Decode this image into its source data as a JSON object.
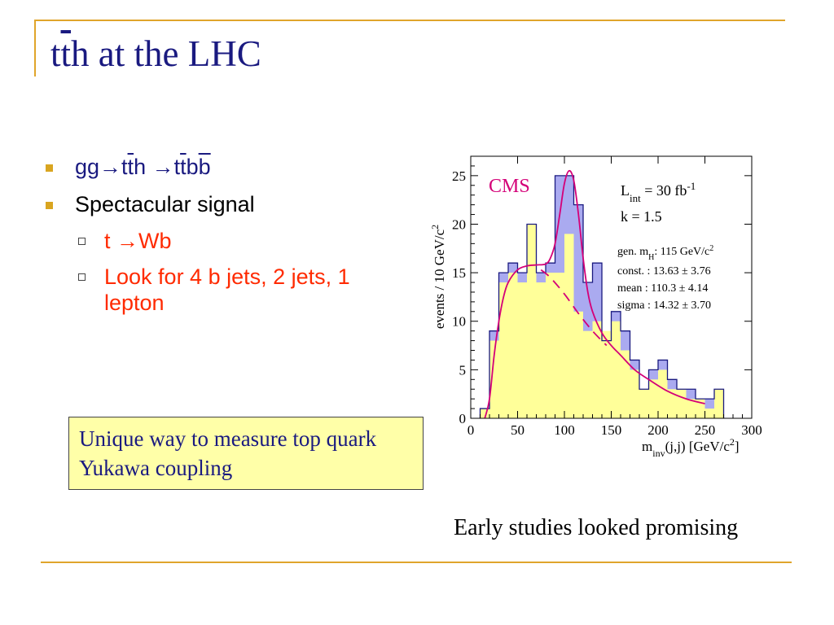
{
  "slide": {
    "title_part1": "t",
    "title_part2": "t",
    "title_part3": "h at the LHC",
    "bullet1_part1": "gg→t",
    "bullet1_part2": "t",
    "bullet1_part3": "h →t",
    "bullet1_part4": "t",
    "bullet1_part5": "b",
    "bullet1_part6": "b",
    "bullet2": "Spectacular signal",
    "sub1": "t →Wb",
    "sub2": "Look for 4 b jets, 2 jets, 1 lepton",
    "callout": "Unique way to measure top quark Yukawa coupling",
    "caption": "Early studies looked promising"
  },
  "colors": {
    "accent": "#e0a52b",
    "title": "#1a1a80",
    "sub_bullet": "#ff2a00",
    "callout_bg": "#ffffa8",
    "hist_signal": "#aaaaf0",
    "hist_background": "#ffff99",
    "fit": "#d40078"
  },
  "chart_data": {
    "type": "bar",
    "experiment_label": "CMS",
    "lumi_label": "L",
    "lumi_sub": "int",
    "lumi_value": " = 30 fb",
    "lumi_sup": "-1",
    "k_label": "k = 1.5",
    "fit_gen_label": "gen. m",
    "fit_gen_sub": "H",
    "fit_gen_value": ": 115 GeV/c",
    "fit_gen_sup": "2",
    "fit_const": "const. :  13.63 ± 3.76",
    "fit_mean": "mean  :  110.3 ± 4.14",
    "fit_sigma": "sigma :  14.32 ± 3.70",
    "xlabel_main": "m",
    "xlabel_sub": "inv",
    "xlabel_rest": "(j,j) [GeV/c",
    "xlabel_sup": "2",
    "xlabel_end": "]",
    "ylabel_main": "events / 10 GeV/c",
    "ylabel_sup": "2",
    "xlim": [
      0,
      300
    ],
    "ylim": [
      0,
      27
    ],
    "x_ticks": [
      0,
      50,
      100,
      150,
      200,
      250,
      300
    ],
    "y_ticks": [
      0,
      5,
      10,
      15,
      20,
      25
    ],
    "bin_width": 10,
    "bin_edges_start": 10,
    "total": [
      1,
      9,
      15,
      16,
      15,
      20,
      15,
      16,
      25,
      25,
      22,
      14,
      16,
      8,
      11,
      9,
      6,
      3,
      5,
      6,
      4,
      3,
      3,
      2,
      2,
      3
    ],
    "background": [
      1,
      8,
      14,
      15,
      14,
      20,
      14,
      15,
      15,
      19,
      11,
      9,
      10,
      9,
      10,
      7,
      5,
      3,
      4,
      5,
      3,
      3,
      2,
      2,
      1,
      3
    ],
    "fit_x": [
      15,
      20,
      25,
      30,
      35,
      40,
      50,
      60,
      70,
      80,
      85,
      90,
      95,
      100,
      105,
      110,
      115,
      120,
      125,
      130,
      140,
      150,
      160,
      175,
      190,
      210,
      230,
      250
    ],
    "fit_y": [
      0,
      2,
      6.5,
      10,
      12.5,
      14,
      15.3,
      15.7,
      15.8,
      15.9,
      16.5,
      18,
      21,
      24.2,
      25.5,
      24.5,
      21,
      16.5,
      13,
      11,
      8.8,
      7.5,
      6.5,
      5,
      4,
      2.8,
      2,
      1.5
    ],
    "bkg_dash_x": [
      75,
      85,
      100,
      115,
      130,
      145
    ],
    "bkg_dash_y": [
      15.3,
      14.5,
      12.8,
      10.8,
      9,
      7.5
    ]
  }
}
